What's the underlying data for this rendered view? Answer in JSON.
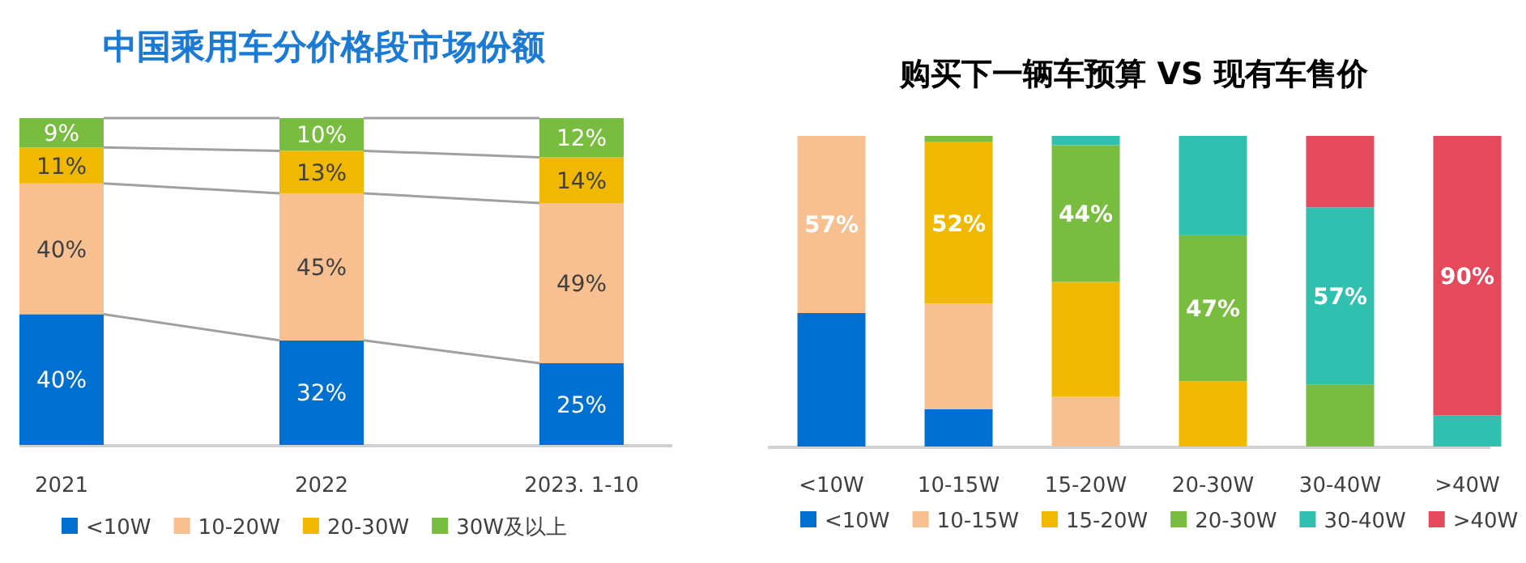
{
  "chart_data": [
    {
      "type": "bar",
      "stacked": true,
      "title": "中国乘用车分价格段市场份额",
      "categories": [
        "2021",
        "2022",
        "2023. 1-10"
      ],
      "legend": "bottom",
      "series": [
        {
          "name": "<10W",
          "color": "#0070d0",
          "values": [
            40,
            32,
            25
          ],
          "value_labels": [
            "40%",
            "32%",
            "25%"
          ]
        },
        {
          "name": "10-20W",
          "color": "#f8c090",
          "values": [
            40,
            45,
            49
          ],
          "value_labels": [
            "40%",
            "45%",
            "49%"
          ]
        },
        {
          "name": "20-30W",
          "color": "#f0b800",
          "values": [
            11,
            13,
            14
          ],
          "value_labels": [
            "11%",
            "13%",
            "14%"
          ]
        },
        {
          "name": "30W及以上",
          "color": "#78bc40",
          "values": [
            9,
            10,
            12
          ],
          "value_labels": [
            "9%",
            "10%",
            "12%"
          ]
        }
      ]
    },
    {
      "type": "bar",
      "stacked": true,
      "title": "购买下一辆车预算 VS 现有车售价",
      "categories": [
        "<10W",
        "10-15W",
        "15-20W",
        "20-30W",
        "30-40W",
        ">40W"
      ],
      "legend": "bottom",
      "series": [
        {
          "name": "<10W",
          "color": "#0070d0",
          "values": [
            43,
            12,
            0,
            0,
            0,
            0
          ],
          "value_labels": [
            null,
            null,
            null,
            null,
            null,
            null
          ]
        },
        {
          "name": "10-15W",
          "color": "#f8c090",
          "values": [
            57,
            34,
            16,
            0,
            0,
            0
          ],
          "value_labels": [
            "57%",
            null,
            null,
            null,
            null,
            null
          ]
        },
        {
          "name": "15-20W",
          "color": "#f0b800",
          "values": [
            0,
            52,
            37,
            21,
            0,
            0
          ],
          "value_labels": [
            null,
            "52%",
            null,
            null,
            null,
            null
          ]
        },
        {
          "name": "20-30W",
          "color": "#78bc40",
          "values": [
            0,
            2,
            44,
            47,
            20,
            0
          ],
          "value_labels": [
            null,
            null,
            "44%",
            "47%",
            null,
            null
          ]
        },
        {
          "name": "30-40W",
          "color": "#30c0b0",
          "values": [
            0,
            0,
            3,
            32,
            57,
            10
          ],
          "value_labels": [
            null,
            null,
            null,
            null,
            "57%",
            null
          ]
        },
        {
          "name": ">40W",
          "color": "#e44a5c",
          "values": [
            0,
            0,
            0,
            0,
            23,
            90
          ],
          "value_labels": [
            null,
            null,
            null,
            null,
            null,
            "90%"
          ]
        }
      ]
    }
  ]
}
